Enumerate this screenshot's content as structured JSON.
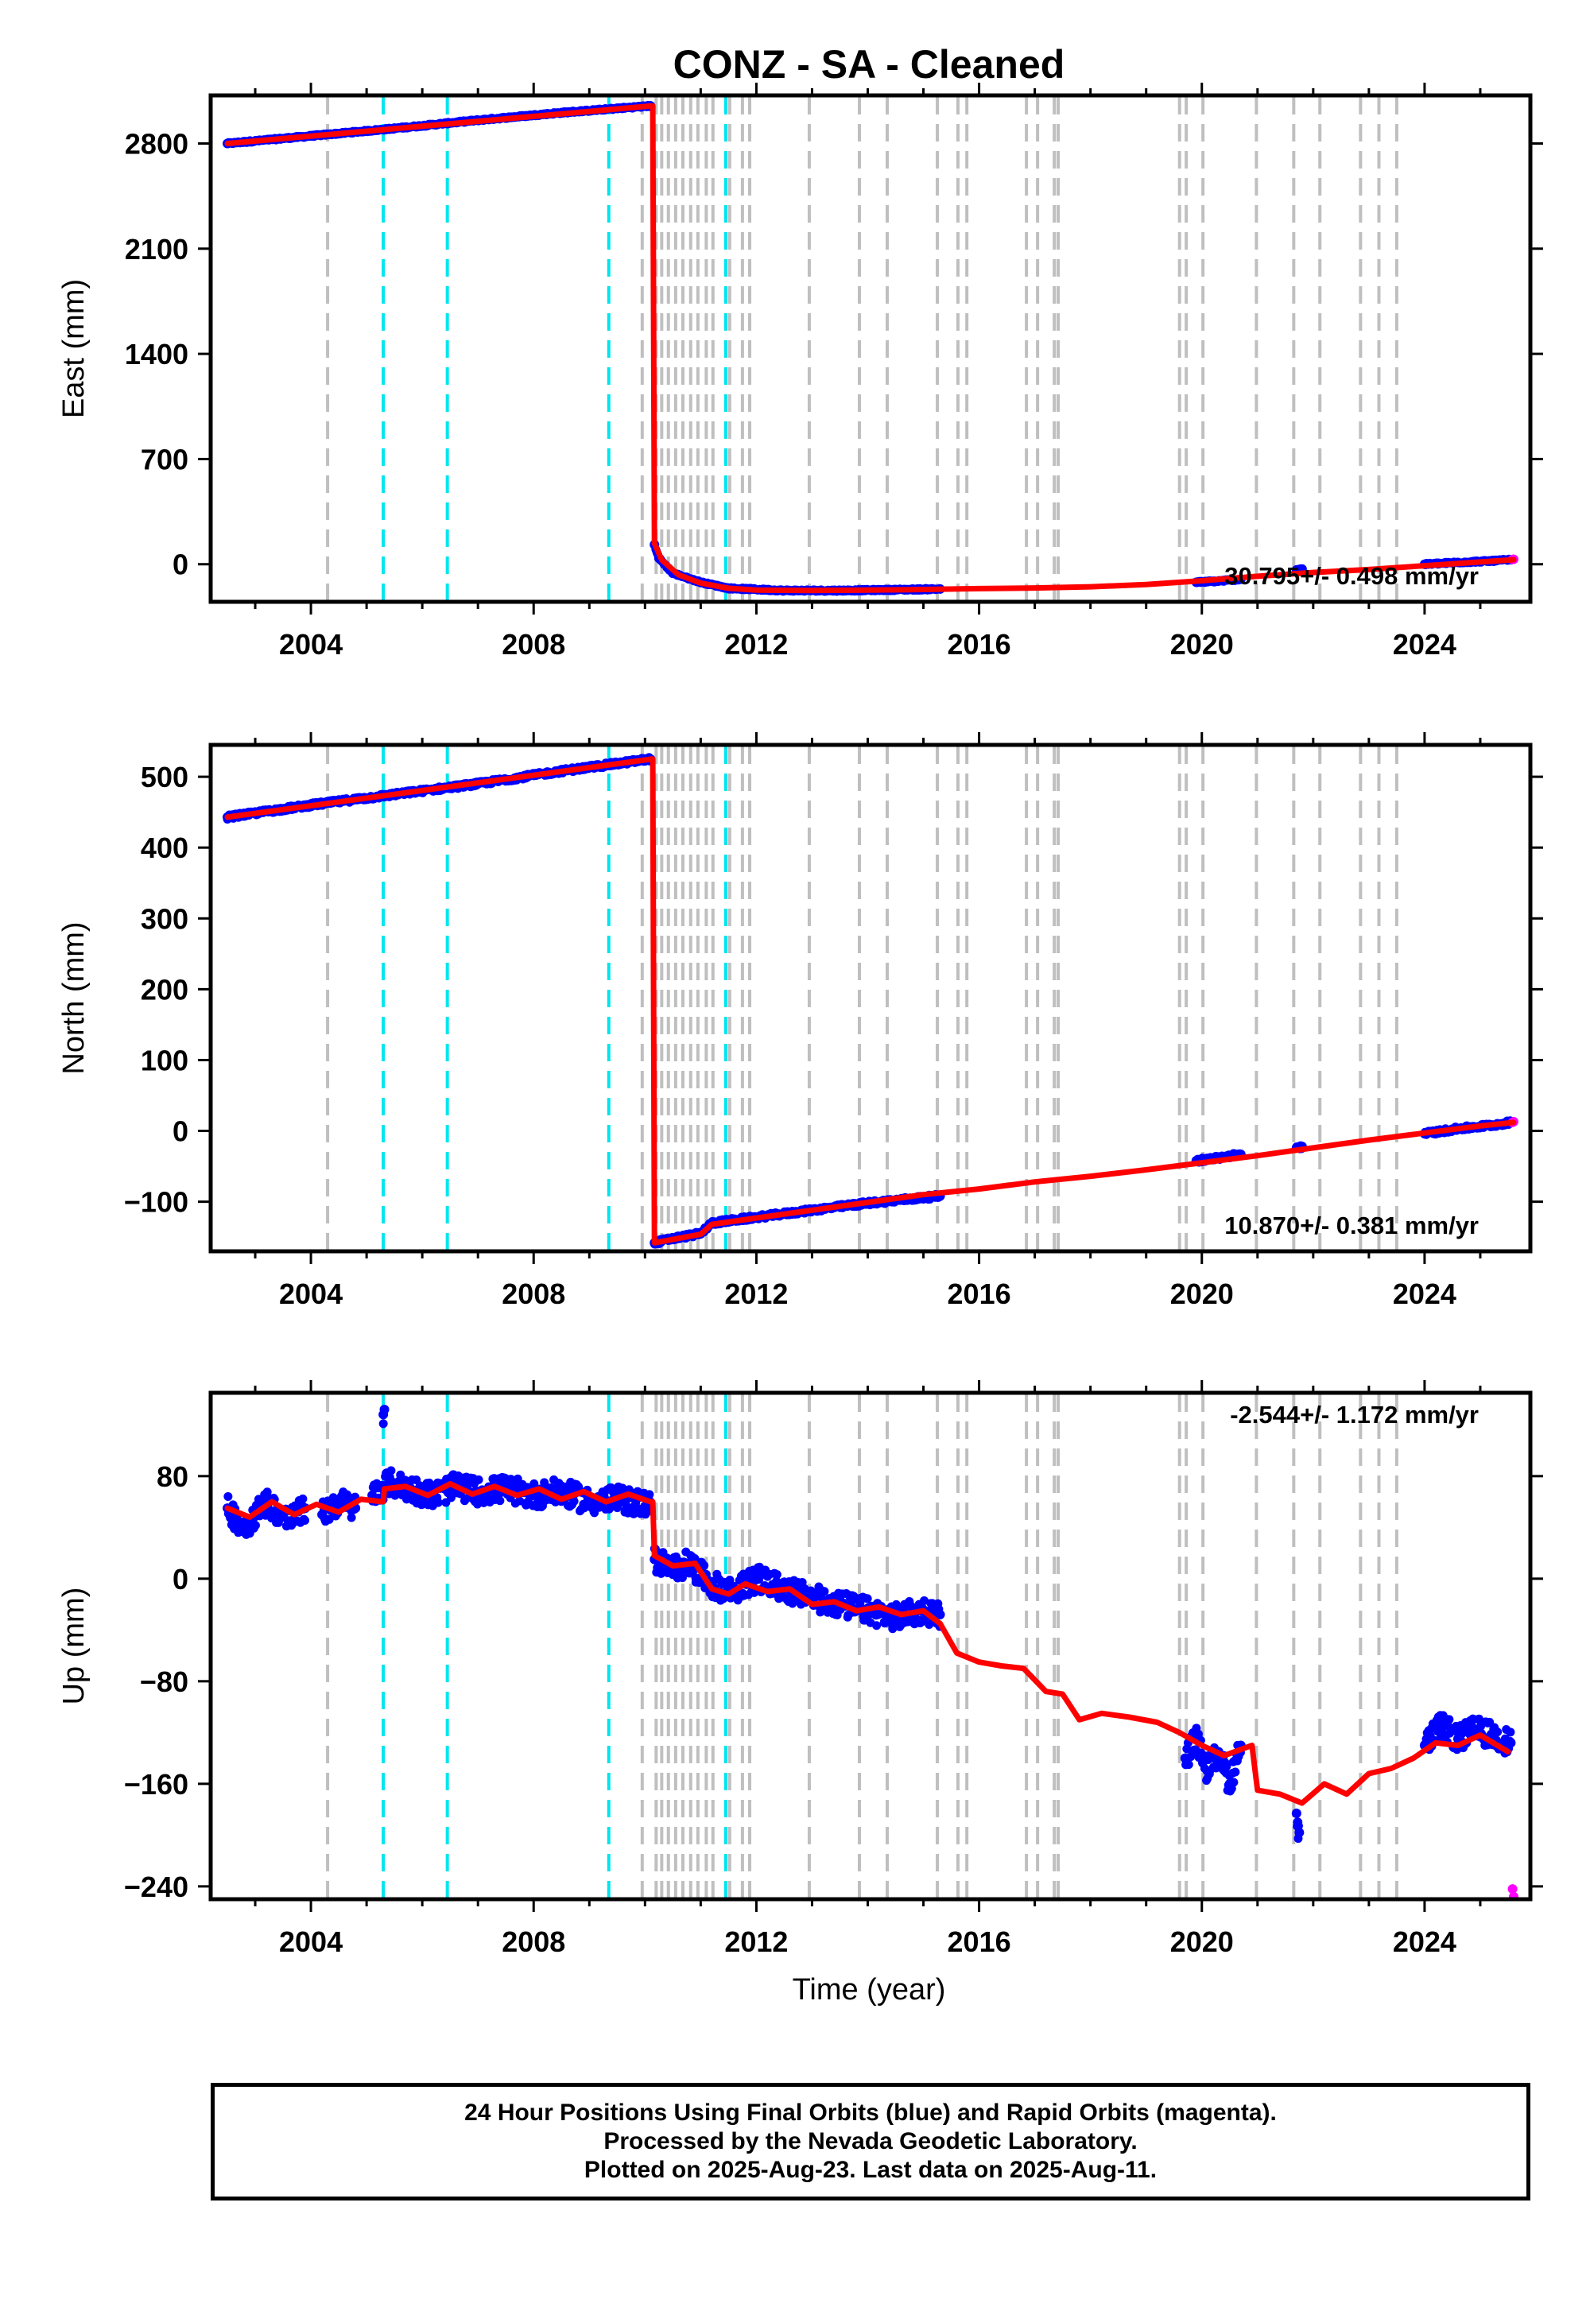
{
  "title": "CONZ  - SA - Cleaned",
  "xlabel": "Time (year)",
  "footer": {
    "line1": "24 Hour Positions Using Final Orbits (blue) and Rapid Orbits (magenta).",
    "line2": "Processed by the Nevada Geodetic Laboratory.",
    "line3": "Plotted on 2025-Aug-23. Last data on 2025-Aug-11."
  },
  "colors": {
    "final_points": "#0000ff",
    "rapid_points": "#ff00ff",
    "model_line": "#ff0000",
    "equipment_change_lines": "#bfbfbf",
    "earthquake_lines": "#00e5ee"
  },
  "chart_data": [
    {
      "type": "scatter",
      "component": "East",
      "ylabel": "East (mm)",
      "xlim": [
        2002.2,
        2025.9
      ],
      "ylim": [
        -250,
        3120
      ],
      "xticks": [
        2004,
        2008,
        2012,
        2016,
        2020,
        2024
      ],
      "yticks": [
        0,
        700,
        1400,
        2100,
        2800
      ],
      "rate_text": "30.795+/- 0.498 mm/yr",
      "rate_position": "bottom-right",
      "series": [
        {
          "role": "final",
          "segments": [
            {
              "x": [
                2002.5,
                2004.0,
                2005.5,
                2007.0,
                2008.5,
                2010.1
              ],
              "y": [
                2800,
                2850,
                2900,
                2955,
                3005,
                3050
              ]
            },
            {
              "x": [
                2010.17,
                2010.25,
                2010.5,
                2011.0,
                2011.5,
                2012.5,
                2013.5,
                2014.5,
                2015.3
              ],
              "y": [
                130,
                40,
                -60,
                -120,
                -160,
                -175,
                -175,
                -170,
                -165
              ]
            },
            {
              "x": [
                2019.9,
                2020.3,
                2020.7
              ],
              "y": [
                -120,
                -112,
                -100
              ]
            },
            {
              "x": [
                2021.7,
                2021.8
              ],
              "y": [
                -38,
                -32
              ]
            },
            {
              "x": [
                2024.0,
                2024.6,
                2025.2,
                2025.55
              ],
              "y": [
                0,
                12,
                22,
                30
              ]
            }
          ]
        },
        {
          "role": "rapid",
          "segments": [
            {
              "x": [
                2025.58,
                2025.6
              ],
              "y": [
                32,
                33
              ]
            }
          ]
        },
        {
          "role": "model",
          "segments": [
            {
              "x": [
                2002.5,
                2010.12
              ],
              "y": [
                2800,
                3050
              ]
            },
            {
              "x": [
                2010.14,
                2010.17
              ],
              "y": [
                3050,
                140
              ]
            },
            {
              "x": [
                2010.17,
                2010.3,
                2010.6,
                2011.0,
                2011.5,
                2012.0,
                2013.0,
                2014.0,
                2015.0,
                2016.0,
                2017.0,
                2018.0,
                2019.0,
                2020.0,
                2021.0,
                2022.0,
                2023.0,
                2024.0,
                2025.0,
                2025.6
              ],
              "y": [
                140,
                30,
                -70,
                -125,
                -160,
                -172,
                -175,
                -172,
                -168,
                -162,
                -158,
                -150,
                -135,
                -110,
                -80,
                -55,
                -35,
                -10,
                15,
                30
              ]
            }
          ]
        }
      ],
      "equipment_changes": [
        2004.3,
        2009.95,
        2010.2,
        2010.3,
        2010.42,
        2010.55,
        2010.68,
        2010.82,
        2010.95,
        2011.1,
        2011.22,
        2011.52,
        2011.75,
        2011.88,
        2012.95,
        2013.85,
        2014.35,
        2015.25,
        2015.62,
        2015.78,
        2016.85,
        2017.05,
        2017.35,
        2017.42,
        2019.6,
        2019.72,
        2020.02,
        2020.98,
        2021.65,
        2022.12,
        2022.85,
        2023.18,
        2023.5
      ],
      "earthquakes": [
        2005.3,
        2006.45,
        2009.35,
        2011.45
      ]
    },
    {
      "type": "scatter",
      "component": "North",
      "ylabel": "North (mm)",
      "xlim": [
        2002.2,
        2025.9
      ],
      "ylim": [
        -170,
        545
      ],
      "xticks": [
        2004,
        2008,
        2012,
        2016,
        2020,
        2024
      ],
      "yticks": [
        -100,
        0,
        100,
        200,
        300,
        400,
        500
      ],
      "rate_text": "10.870+/- 0.381 mm/yr",
      "rate_position": "bottom-right",
      "series": [
        {
          "role": "final",
          "segments": [
            {
              "x": [
                2002.5,
                2004.0,
                2005.5,
                2007.0,
                2008.5,
                2010.1
              ],
              "y": [
                443,
                460,
                475,
                490,
                508,
                525
              ]
            },
            {
              "x": [
                2010.17,
                2010.5,
                2011.0,
                2011.2,
                2012.0,
                2013.0,
                2014.0,
                2015.3
              ],
              "y": [
                -158,
                -152,
                -145,
                -130,
                -122,
                -112,
                -102,
                -92
              ]
            },
            {
              "x": [
                2019.9,
                2020.3,
                2020.7
              ],
              "y": [
                -42,
                -38,
                -33
              ]
            },
            {
              "x": [
                2021.7,
                2021.8
              ],
              "y": [
                -24,
                -22
              ]
            },
            {
              "x": [
                2024.0,
                2024.6,
                2025.2,
                2025.55
              ],
              "y": [
                -4,
                3,
                8,
                12
              ]
            }
          ]
        },
        {
          "role": "rapid",
          "segments": [
            {
              "x": [
                2025.58,
                2025.6
              ],
              "y": [
                12,
                13
              ]
            }
          ]
        },
        {
          "role": "model",
          "segments": [
            {
              "x": [
                2002.5,
                2010.12
              ],
              "y": [
                443,
                525
              ]
            },
            {
              "x": [
                2010.14,
                2010.17
              ],
              "y": [
                525,
                -158
              ]
            },
            {
              "x": [
                2010.17,
                2011.0,
                2011.2,
                2012.0,
                2013.0,
                2014.0,
                2015.0,
                2016.0,
                2017.0,
                2018.0,
                2019.0,
                2020.0,
                2021.0,
                2022.0,
                2023.0,
                2024.0,
                2025.0,
                2025.6
              ],
              "y": [
                -158,
                -146,
                -132,
                -123,
                -112,
                -101,
                -90,
                -82,
                -72,
                -64,
                -55,
                -45,
                -35,
                -24,
                -13,
                -3,
                7,
                12
              ]
            }
          ]
        }
      ],
      "equipment_changes": [
        2004.3,
        2009.95,
        2010.2,
        2010.3,
        2010.42,
        2010.55,
        2010.68,
        2010.82,
        2010.95,
        2011.1,
        2011.22,
        2011.52,
        2011.75,
        2011.88,
        2012.95,
        2013.85,
        2014.35,
        2015.25,
        2015.62,
        2015.78,
        2016.85,
        2017.05,
        2017.35,
        2017.42,
        2019.6,
        2019.72,
        2020.02,
        2020.98,
        2021.65,
        2022.12,
        2022.85,
        2023.18,
        2023.5
      ],
      "earthquakes": [
        2005.3,
        2006.45,
        2009.35,
        2011.45
      ]
    },
    {
      "type": "scatter",
      "component": "Up",
      "ylabel": "Up (mm)",
      "xlim": [
        2002.2,
        2025.9
      ],
      "ylim": [
        -250,
        145
      ],
      "xticks": [
        2004,
        2008,
        2012,
        2016,
        2020,
        2024
      ],
      "yticks": [
        -240,
        -160,
        -80,
        0,
        80
      ],
      "rate_text": "-2.544+/- 1.172 mm/yr",
      "rate_position": "top-right",
      "series": [
        {
          "role": "final",
          "segments": [
            {
              "x": [
                2002.5,
                2002.8,
                2003.2,
                2003.6,
                2003.9
              ],
              "y": [
                55,
                40,
                60,
                45,
                55
              ]
            },
            {
              "x": [
                2004.2,
                2004.5,
                2004.8
              ],
              "y": [
                50,
                60,
                55
              ]
            },
            {
              "x": [
                2005.1,
                2005.4,
                2005.8,
                2006.2,
                2006.6,
                2007.0,
                2007.5,
                2008.0,
                2008.5,
                2009.0,
                2009.5,
                2010.1
              ],
              "y": [
                65,
                75,
                70,
                65,
                72,
                68,
                70,
                65,
                68,
                60,
                62,
                58
              ]
            },
            {
              "x": [
                2005.3,
                2005.32
              ],
              "y": [
                128,
                132
              ]
            },
            {
              "x": [
                2010.17,
                2010.5,
                2010.8,
                2011.2,
                2011.6,
                2012.0,
                2012.5,
                2013.0,
                2013.5,
                2014.0,
                2014.5,
                2015.0,
                2015.3
              ],
              "y": [
                15,
                8,
                12,
                -5,
                -10,
                0,
                -8,
                -15,
                -20,
                -25,
                -30,
                -25,
                -28
              ]
            },
            {
              "x": [
                2019.7,
                2019.9,
                2020.1,
                2020.3,
                2020.5,
                2020.7
              ],
              "y": [
                -140,
                -125,
                -150,
                -135,
                -160,
                -130
              ]
            },
            {
              "x": [
                2021.7,
                2021.72,
                2021.75
              ],
              "y": [
                -183,
                -190,
                -198
              ]
            },
            {
              "x": [
                2024.0,
                2024.3,
                2024.6,
                2024.9,
                2025.2,
                2025.55
              ],
              "y": [
                -130,
                -115,
                -125,
                -118,
                -122,
                -128
              ]
            }
          ]
        },
        {
          "role": "rapid",
          "segments": [
            {
              "x": [
                2025.58,
                2025.6
              ],
              "y": [
                -242,
                -248
              ]
            }
          ]
        },
        {
          "role": "model",
          "segments": [
            {
              "x": [
                2002.5,
                2002.9,
                2003.3,
                2003.7,
                2004.1,
                2004.5,
                2004.9,
                2005.3,
                2005.32,
                2005.7,
                2006.1,
                2006.5,
                2006.9,
                2007.3,
                2007.7,
                2008.1,
                2008.5,
                2008.9,
                2009.3,
                2009.7,
                2010.1
              ],
              "y": [
                55,
                48,
                60,
                50,
                58,
                52,
                62,
                60,
                70,
                72,
                65,
                74,
                66,
                72,
                65,
                70,
                62,
                68,
                60,
                66,
                60
              ]
            },
            {
              "x": [
                2010.14,
                2010.17
              ],
              "y": [
                60,
                18
              ]
            },
            {
              "x": [
                2010.17,
                2010.5,
                2010.9,
                2011.2,
                2011.5,
                2011.8,
                2012.2,
                2012.6,
                2013.0,
                2013.4,
                2013.8,
                2014.2,
                2014.6,
                2015.0,
                2015.3,
                2015.6,
                2016.0,
                2016.4,
                2016.8,
                2017.2,
                2017.5,
                2017.8,
                2018.2,
                2018.7,
                2019.2,
                2019.6,
                2020.0,
                2020.4,
                2020.9,
                2021.0,
                2021.4,
                2021.8,
                2022.2,
                2022.6,
                2023.0,
                2023.4,
                2023.8,
                2024.2,
                2024.6,
                2025.0,
                2025.5
              ],
              "y": [
                18,
                10,
                12,
                -8,
                -12,
                -4,
                -10,
                -8,
                -20,
                -18,
                -25,
                -22,
                -28,
                -25,
                -35,
                -58,
                -65,
                -68,
                -70,
                -88,
                -90,
                -110,
                -105,
                -108,
                -112,
                -120,
                -130,
                -138,
                -130,
                -165,
                -168,
                -175,
                -160,
                -168,
                -152,
                -148,
                -140,
                -128,
                -130,
                -122,
                -135
              ]
            }
          ]
        }
      ],
      "equipment_changes": [
        2004.3,
        2009.95,
        2010.2,
        2010.3,
        2010.42,
        2010.55,
        2010.68,
        2010.82,
        2010.95,
        2011.1,
        2011.22,
        2011.52,
        2011.75,
        2011.88,
        2012.95,
        2013.85,
        2014.35,
        2015.25,
        2015.62,
        2015.78,
        2016.85,
        2017.05,
        2017.35,
        2017.42,
        2019.6,
        2019.72,
        2020.02,
        2020.98,
        2021.65,
        2022.12,
        2022.85,
        2023.18,
        2023.5
      ],
      "earthquakes": [
        2005.3,
        2006.45,
        2009.35,
        2011.45
      ]
    }
  ]
}
